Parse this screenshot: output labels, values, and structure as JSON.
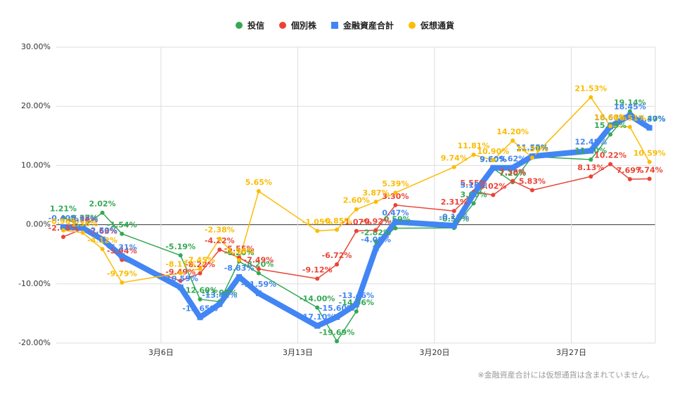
{
  "chart_data": {
    "type": "line",
    "x": [
      1,
      2,
      3,
      4,
      7,
      8,
      9,
      10,
      11,
      14,
      15,
      16,
      17,
      18,
      21,
      22,
      23,
      24,
      25,
      28,
      29,
      30,
      31
    ],
    "xlim": [
      0.64,
      31.3
    ],
    "xticks": [
      {
        "value": 6,
        "label": "3月6日"
      },
      {
        "value": 13,
        "label": "3月13日"
      },
      {
        "value": 20,
        "label": "3月20日"
      },
      {
        "value": 27,
        "label": "3月27日"
      }
    ],
    "ylim": [
      -20,
      30
    ],
    "yticks": [
      {
        "value": -20,
        "label": "-20.00%"
      },
      {
        "value": -10,
        "label": "-10.00%"
      },
      {
        "value": 0,
        "label": "0.00%"
      },
      {
        "value": 10,
        "label": "10.00%"
      },
      {
        "value": 20,
        "label": "20.00%"
      },
      {
        "value": 30,
        "label": "30.00%"
      }
    ],
    "grid": true,
    "legend": "top",
    "series": [
      {
        "name": "投信",
        "color": "#34a853",
        "marker": "circle",
        "line_width": 1.5,
        "values": [
          1.21,
          -0.37,
          2.02,
          -1.54,
          -5.19,
          -12.6,
          -13.0,
          -6.2,
          -8.2,
          -14.0,
          -19.69,
          -14.66,
          -2.82,
          -0.59,
          -0.55,
          3.6,
          9.5,
          7.2,
          11.5,
          11.0,
          15.25,
          19.14,
          16.4
        ],
        "value_labels": [
          "1.21%",
          "-0.37%",
          "2.02%",
          "-1.54%",
          "-5.19%",
          "-12.60%",
          "-13.00%",
          "-6.20%",
          "-8.20%",
          "-14.00%",
          "-19.69%",
          "-14.66%",
          "-2.82%",
          "-0.59%",
          "-0.55%",
          "3.60%",
          "9.50%",
          "7.20%",
          "11.50%",
          "11.00%",
          "15.25%",
          "19.14%",
          "16.40%"
        ]
      },
      {
        "name": "個別株",
        "color": "#ea4335",
        "marker": "circle",
        "line_width": 1.5,
        "values": [
          -2.06,
          -0.7,
          -2.63,
          -5.94,
          -9.49,
          -8.22,
          -4.22,
          -5.55,
          -7.49,
          -9.12,
          -6.72,
          -1.07,
          -0.92,
          3.3,
          2.31,
          5.55,
          5.02,
          7.38,
          5.83,
          8.13,
          10.22,
          7.69,
          7.74
        ],
        "value_labels": [
          "-2.06%",
          "-0.70%",
          "-2.63%",
          "-5.94%",
          "-9.49%",
          "-8.22%",
          "-4.22%",
          "-5.55%",
          "-7.49%",
          "-9.12%",
          "-6.72%",
          "-1.07%",
          "-0.92%",
          "3.30%",
          "2.31%",
          "5.55%",
          "5.02%",
          "7.38%",
          "5.83%",
          "8.13%",
          "10.22%",
          "7.69%",
          "7.74%"
        ]
      },
      {
        "name": "金融資産合計",
        "color": "#4285f4",
        "marker": "square",
        "line_width": 8,
        "values": [
          -0.4,
          -0.57,
          -2.5,
          -5.31,
          -10.59,
          -15.65,
          -13.42,
          -8.83,
          -11.59,
          -17.1,
          -15.6,
          -13.46,
          -4.0,
          0.47,
          -0.16,
          5.18,
          9.6,
          9.62,
          11.55,
          12.48,
          16.6,
          18.45,
          16.37
        ],
        "value_labels": [
          "-0.40%",
          "-0.57%",
          "-2.50%",
          "-5.31%",
          "-10.59%",
          "-15.65%",
          "-13.42%",
          "-8.83%",
          "-11.59%",
          "-17.10%",
          "-15.60%",
          "-13.46%",
          "-4.00%",
          "0.47%",
          "-0.16%",
          "5.18%",
          "9.60%",
          "9.62%",
          "11.55%",
          "12.48%",
          "16.60%",
          "18.45%",
          "16.37%"
        ]
      },
      {
        "name": "仮想通貨",
        "color": "#fbbc04",
        "marker": "circle",
        "line_width": 1.5,
        "values": [
          -0.96,
          -1.36,
          -4.12,
          -9.79,
          -8.17,
          -7.45,
          -2.38,
          -5.98,
          5.65,
          -1.05,
          -0.85,
          2.6,
          3.87,
          5.39,
          9.74,
          11.81,
          10.9,
          14.2,
          11.31,
          21.53,
          16.66,
          16.51,
          10.59
        ],
        "value_labels": [
          "-0.96%",
          "-1.36%",
          "-4.12%",
          "-9.79%",
          "-8.17%",
          "-7.45%",
          "-2.38%",
          "-5.98%",
          "5.65%",
          "-1.05%",
          "-0.85%",
          "2.60%",
          "3.87%",
          "5.39%",
          "9.74%",
          "11.81%",
          "10.90%",
          "14.20%",
          "11.31%",
          "21.53%",
          "16.66%",
          "16.51%",
          "10.59%"
        ]
      }
    ],
    "footnote": "※金融資産合計には仮想通貨は含まれていません。"
  }
}
